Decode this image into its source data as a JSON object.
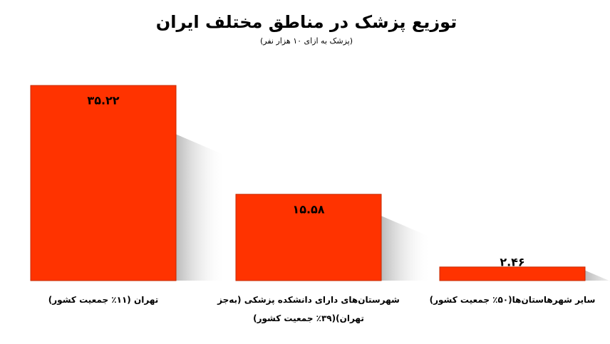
{
  "chart_data": {
    "type": "bar",
    "title": "توزیع پزشک در مناطق مختلف ایران",
    "subtitle": "(پزشک به ازای ۱۰ هزار نفر)",
    "categories": [
      "تهران (۱۱٪ جمعیت کشور)",
      "شهرستان‌های دارای دانشکده پزشکی (به‌جز تهران)(۳۹٪ جمعیت کشور)",
      "سایر شهرهاستان‌ها(۵۰٪ جمعیت کشور)"
    ],
    "values": [
      35.22,
      15.58,
      2.46
    ],
    "value_labels": [
      "۳۵.۲۲",
      "۱۵.۵۸",
      "۲.۴۶"
    ],
    "color": "#ff3300"
  }
}
